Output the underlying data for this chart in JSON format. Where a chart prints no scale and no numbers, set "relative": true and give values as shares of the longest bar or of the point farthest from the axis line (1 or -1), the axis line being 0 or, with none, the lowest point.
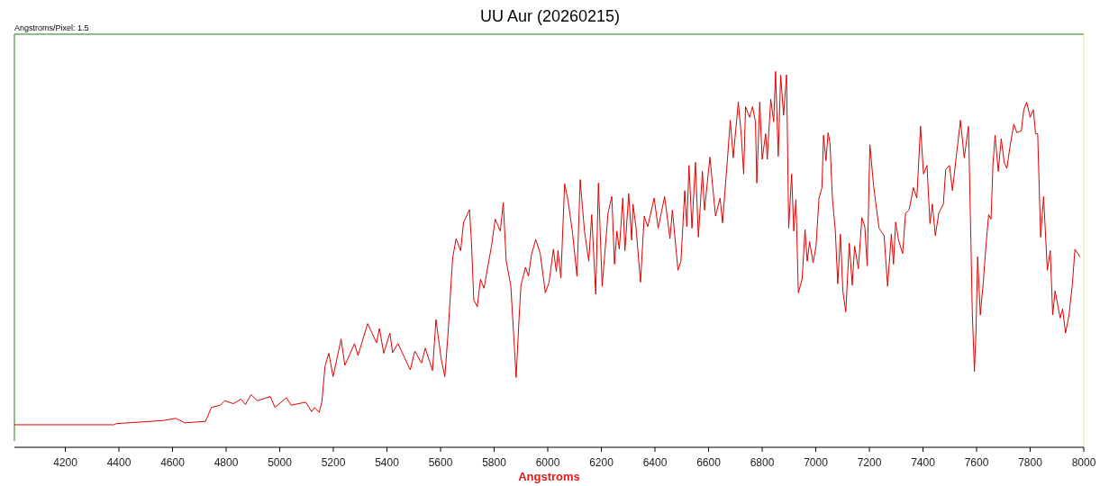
{
  "chart_data": {
    "type": "line",
    "title": "UU Aur (20260215)",
    "xlabel": "Angstroms",
    "annotations": [
      "Angstroms/Pixel: 1.5"
    ],
    "relative": true,
    "xlim": [
      4010,
      8000
    ],
    "xticks": [
      4200,
      4400,
      4600,
      4800,
      5000,
      5200,
      5400,
      5600,
      5800,
      6000,
      6200,
      6400,
      6600,
      6800,
      7000,
      7200,
      7400,
      7600,
      7800,
      8000
    ],
    "x": [
      4010,
      4382,
      4390,
      4563,
      4613,
      4646,
      4723,
      4745,
      4778,
      4794,
      4827,
      4855,
      4872,
      4893,
      4916,
      4965,
      4982,
      5025,
      5042,
      5097,
      5119,
      5130,
      5147,
      5157,
      5169,
      5183,
      5199,
      5229,
      5243,
      5279,
      5292,
      5328,
      5361,
      5372,
      5388,
      5411,
      5421,
      5441,
      5487,
      5504,
      5529,
      5543,
      5570,
      5583,
      5603,
      5616,
      5628,
      5645,
      5658,
      5675,
      5686,
      5708,
      5715,
      5724,
      5737,
      5749,
      5762,
      5779,
      5790,
      5804,
      5823,
      5834,
      5845,
      5862,
      5882,
      5893,
      5900,
      5917,
      5928,
      5939,
      5955,
      5972,
      5991,
      6005,
      6021,
      6032,
      6038,
      6049,
      6063,
      6076,
      6093,
      6109,
      6121,
      6137,
      6153,
      6164,
      6179,
      6189,
      6203,
      6225,
      6239,
      6249,
      6258,
      6267,
      6280,
      6288,
      6302,
      6313,
      6318,
      6329,
      6346,
      6360,
      6373,
      6397,
      6412,
      6436,
      6456,
      6465,
      6486,
      6497,
      6511,
      6519,
      6527,
      6538,
      6551,
      6562,
      6577,
      6585,
      6605,
      6626,
      6643,
      6652,
      6670,
      6681,
      6692,
      6711,
      6722,
      6731,
      6738,
      6753,
      6764,
      6775,
      6780,
      6791,
      6800,
      6813,
      6819,
      6832,
      6843,
      6850,
      6860,
      6869,
      6880,
      6891,
      6899,
      6910,
      6918,
      6926,
      6935,
      6949,
      6960,
      6968,
      6977,
      6990,
      7001,
      7012,
      7023,
      7029,
      7038,
      7046,
      7053,
      7062,
      7073,
      7082,
      7092,
      7101,
      7112,
      7125,
      7136,
      7145,
      7159,
      7172,
      7183,
      7192,
      7202,
      7216,
      7236,
      7255,
      7268,
      7282,
      7290,
      7298,
      7309,
      7324,
      7335,
      7348,
      7357,
      7364,
      7377,
      7391,
      7402,
      7415,
      7426,
      7435,
      7446,
      7459,
      7476,
      7485,
      7499,
      7510,
      7523,
      7540,
      7554,
      7570,
      7579,
      7584,
      7592,
      7598,
      7604,
      7614,
      7625,
      7634,
      7645,
      7654,
      7661,
      7669,
      7681,
      7692,
      7703,
      7713,
      7725,
      7739,
      7750,
      7767,
      7776,
      7787,
      7800,
      7812,
      7820,
      7828,
      7839,
      7850,
      7864,
      7875,
      7884,
      7893,
      7912,
      7921,
      7932,
      7945,
      7958,
      7967,
      7978,
      7985
    ],
    "series": [
      {
        "color": "#e00000",
        "values": [
          0.06,
          0.06,
          0.063,
          0.071,
          0.077,
          0.065,
          0.069,
          0.106,
          0.112,
          0.124,
          0.116,
          0.128,
          0.114,
          0.14,
          0.124,
          0.135,
          0.106,
          0.132,
          0.112,
          0.12,
          0.095,
          0.106,
          0.093,
          0.12,
          0.216,
          0.25,
          0.188,
          0.288,
          0.218,
          0.276,
          0.244,
          0.329,
          0.278,
          0.316,
          0.25,
          0.304,
          0.252,
          0.276,
          0.206,
          0.256,
          0.224,
          0.264,
          0.204,
          0.34,
          0.232,
          0.188,
          0.304,
          0.503,
          0.555,
          0.523,
          0.599,
          0.632,
          0.551,
          0.392,
          0.374,
          0.447,
          0.423,
          0.491,
          0.535,
          0.607,
          0.575,
          0.651,
          0.495,
          0.431,
          0.186,
          0.344,
          0.431,
          0.479,
          0.455,
          0.511,
          0.553,
          0.515,
          0.411,
          0.439,
          0.527,
          0.467,
          0.523,
          0.451,
          0.701,
          0.655,
          0.567,
          0.455,
          0.712,
          0.575,
          0.495,
          0.619,
          0.407,
          0.703,
          0.428,
          0.623,
          0.667,
          0.487,
          0.575,
          0.527,
          0.663,
          0.523,
          0.675,
          0.551,
          0.647,
          0.587,
          0.439,
          0.615,
          0.587,
          0.663,
          0.583,
          0.667,
          0.555,
          0.631,
          0.471,
          0.495,
          0.683,
          0.587,
          0.75,
          0.583,
          0.758,
          0.559,
          0.734,
          0.631,
          0.772,
          0.615,
          0.663,
          0.597,
          0.762,
          0.87,
          0.77,
          0.919,
          0.83,
          0.727,
          0.906,
          0.878,
          0.906,
          0.866,
          0.703,
          0.919,
          0.766,
          0.834,
          0.766,
          0.926,
          0.866,
          1,
          0.774,
          0.99,
          0.883,
          0.991,
          0.583,
          0.727,
          0.575,
          0.659,
          0.411,
          0.447,
          0.579,
          0.495,
          0.547,
          0.491,
          0.535,
          0.663,
          0.691,
          0.83,
          0.762,
          0.837,
          0.81,
          0.663,
          0.575,
          0.435,
          0.567,
          0.416,
          0.36,
          0.543,
          0.431,
          0.535,
          0.475,
          0.611,
          0.587,
          0.483,
          0.805,
          0.694,
          0.583,
          0.563,
          0.428,
          0.567,
          0.487,
          0.599,
          0.551,
          0.515,
          0.623,
          0.631,
          0.663,
          0.691,
          0.663,
          0.854,
          0.727,
          0.75,
          0.595,
          0.647,
          0.563,
          0.623,
          0.647,
          0.739,
          0.75,
          0.683,
          0.766,
          0.87,
          0.77,
          0.854,
          0.543,
          0.36,
          0.202,
          0.312,
          0.507,
          0.352,
          0.439,
          0.527,
          0.619,
          0.607,
          0.75,
          0.83,
          0.734,
          0.821,
          0.758,
          0.742,
          0.802,
          0.86,
          0.837,
          0.842,
          0.898,
          0.918,
          0.878,
          0.898,
          0.834,
          0.834,
          0.559,
          0.667,
          0.471,
          0.523,
          0.352,
          0.416,
          0.344,
          0.368,
          0.304,
          0.352,
          0.439,
          0.527,
          0.515,
          0.507
        ]
      }
    ]
  }
}
